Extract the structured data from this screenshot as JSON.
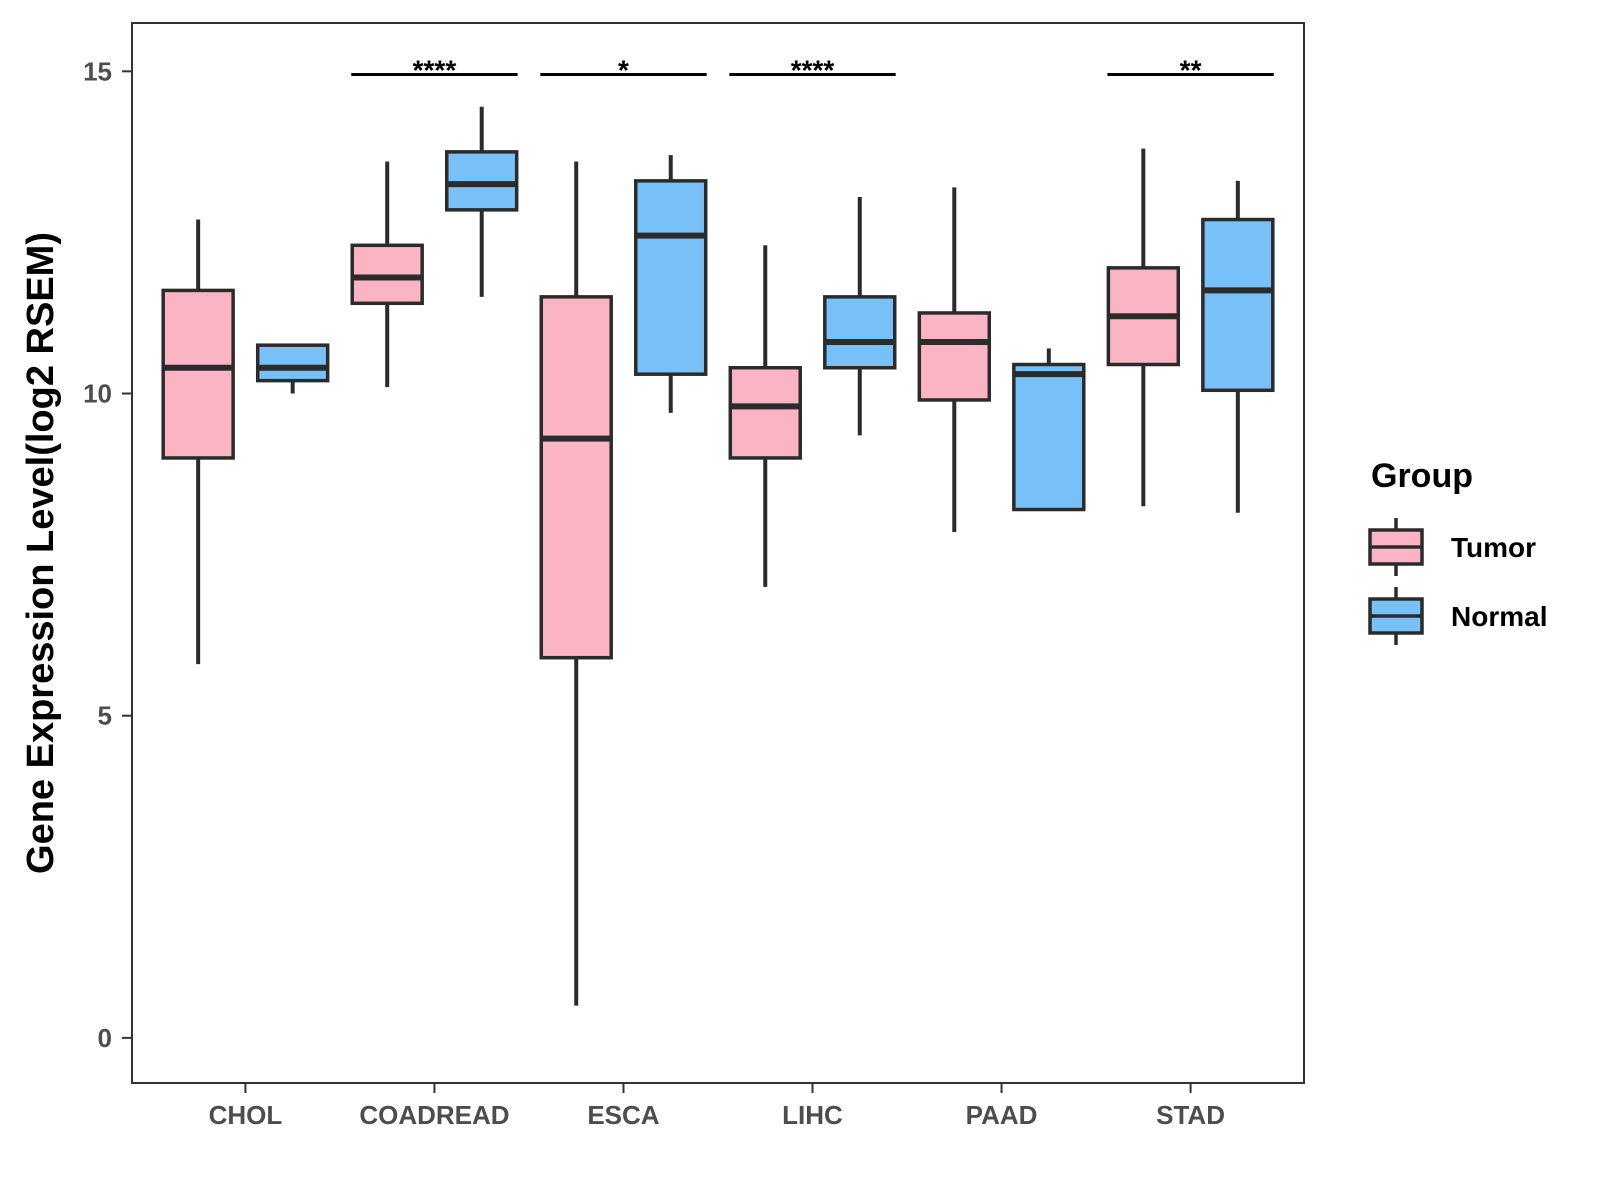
{
  "chart_data": {
    "type": "box",
    "title": "",
    "xlabel": "",
    "ylabel": "Gene Expression Level(log2 RSEM)",
    "ylim": [
      -0.7,
      15.75
    ],
    "yticks": [
      0,
      5,
      10,
      15
    ],
    "categories": [
      "CHOL",
      "COADREAD",
      "ESCA",
      "LIHC",
      "PAAD",
      "STAD"
    ],
    "legend": {
      "title": "Group",
      "position": "right"
    },
    "series": [
      {
        "name": "Tumor",
        "color": "#FBB4C4",
        "boxes": [
          {
            "category": "CHOL",
            "whisker_low": 5.8,
            "q1": 9.0,
            "median": 10.4,
            "q3": 11.6,
            "whisker_high": 12.7
          },
          {
            "category": "COADREAD",
            "whisker_low": 10.1,
            "q1": 11.4,
            "median": 11.8,
            "q3": 12.3,
            "whisker_high": 13.6
          },
          {
            "category": "ESCA",
            "whisker_low": 0.5,
            "q1": 5.9,
            "median": 9.3,
            "q3": 11.5,
            "whisker_high": 13.6
          },
          {
            "category": "LIHC",
            "whisker_low": 7.0,
            "q1": 9.0,
            "median": 9.8,
            "q3": 10.4,
            "whisker_high": 12.3
          },
          {
            "category": "PAAD",
            "whisker_low": 7.85,
            "q1": 9.9,
            "median": 10.8,
            "q3": 11.25,
            "whisker_high": 13.2
          },
          {
            "category": "STAD",
            "whisker_low": 8.25,
            "q1": 10.45,
            "median": 11.2,
            "q3": 11.95,
            "whisker_high": 13.8
          }
        ]
      },
      {
        "name": "Normal",
        "color": "#78C1F8",
        "boxes": [
          {
            "category": "CHOL",
            "whisker_low": 10.0,
            "q1": 10.2,
            "median": 10.4,
            "q3": 10.75,
            "whisker_high": 10.75
          },
          {
            "category": "COADREAD",
            "whisker_low": 11.5,
            "q1": 12.85,
            "median": 13.25,
            "q3": 13.75,
            "whisker_high": 14.45
          },
          {
            "category": "ESCA",
            "whisker_low": 9.7,
            "q1": 10.3,
            "median": 12.45,
            "q3": 13.3,
            "whisker_high": 13.7
          },
          {
            "category": "LIHC",
            "whisker_low": 9.35,
            "q1": 10.4,
            "median": 10.8,
            "q3": 11.5,
            "whisker_high": 13.05
          },
          {
            "category": "PAAD",
            "whisker_low": 8.2,
            "q1": 8.2,
            "median": 10.3,
            "q3": 10.45,
            "whisker_high": 10.7
          },
          {
            "category": "STAD",
            "whisker_low": 8.15,
            "q1": 10.05,
            "median": 11.6,
            "q3": 12.7,
            "whisker_high": 13.3
          }
        ]
      }
    ],
    "significance": [
      {
        "category": "COADREAD",
        "label": "****",
        "y": 14.95
      },
      {
        "category": "ESCA",
        "label": "*",
        "y": 14.95
      },
      {
        "category": "LIHC",
        "label": "****",
        "y": 14.95
      },
      {
        "category": "STAD",
        "label": "**",
        "y": 14.95
      }
    ]
  }
}
